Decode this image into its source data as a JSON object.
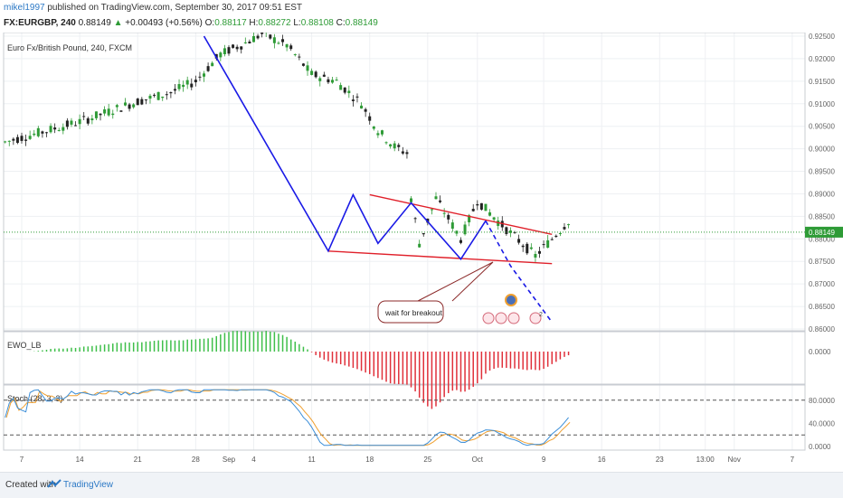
{
  "header": {
    "user": "mikel1997",
    "published": "published on TradingView.com, September 30, 2017 09:51 EST",
    "symbol": "FX:EURGBP, 240",
    "last": "0.88149",
    "change": "+0.00493 (+0.56%)",
    "o_label": "O:",
    "o_value": "0.88117",
    "h_label": "H:",
    "h_value": "0.88272",
    "l_label": "L:",
    "l_value": "0.88108",
    "c_label": "C:",
    "c_value": "0.88149"
  },
  "colors": {
    "up": "#2e9b36",
    "down": "#222222",
    "trendline": "#1a1ae6",
    "channel": "#e0202a",
    "ewo_up": "#3fbf4a",
    "ewo_down": "#e0303a",
    "stoch_k": "#3b8ed8",
    "stoch_d": "#f0a030",
    "last_price_tag": "#2e9b36"
  },
  "chart_data": [
    {
      "type": "candlestick",
      "title": "Euro Fx/British Pound, 240, FXCM",
      "y_ticks": [
        "0.92500",
        "0.92000",
        "0.91500",
        "0.91000",
        "0.90500",
        "0.90000",
        "0.89500",
        "0.89000",
        "0.88500",
        "0.88000",
        "0.87500",
        "0.87000",
        "0.86500",
        "0.86000"
      ],
      "ylim": [
        0.86,
        0.925
      ],
      "last_price_label": "0.88149",
      "x_ticks": [
        "7",
        "14",
        "21",
        "28",
        "Sep",
        "4",
        "11",
        "18",
        "25",
        "Oct",
        "9",
        "16",
        "23",
        "13:00",
        "Nov",
        "7"
      ],
      "annotations": [
        {
          "type": "callout",
          "text": "wait for breakout"
        },
        {
          "type": "event_marker",
          "text": "2"
        }
      ],
      "channel_upper": {
        "start": [
          "Sep 18",
          0.8898
        ],
        "end": [
          "Oct 10",
          0.881
        ]
      },
      "channel_lower": {
        "start": [
          "Sep 13",
          0.8773
        ],
        "end": [
          "Oct 10",
          0.8745
        ]
      },
      "waves": [
        {
          "x": "Aug 29",
          "y": 0.925
        },
        {
          "x": "Sep 13",
          "y": 0.8773
        },
        {
          "x": "Sep 16",
          "y": 0.8898
        },
        {
          "x": "Sep 19",
          "y": 0.879
        },
        {
          "x": "Sep 23",
          "y": 0.888
        },
        {
          "x": "Sep 29",
          "y": 0.8755
        },
        {
          "x": "Oct 2",
          "y": 0.884
        }
      ],
      "projection": [
        {
          "x": "Oct 2",
          "y": 0.884
        },
        {
          "x": "Oct 5",
          "y": 0.874
        },
        {
          "x": "Oct 10",
          "y": 0.8615
        }
      ]
    },
    {
      "type": "bar",
      "title": "EWO_LB",
      "y_ticks": [
        "0.0000"
      ]
    },
    {
      "type": "line",
      "title": "Stoch (28, 3, 3)",
      "y_ticks": [
        "80.0000",
        "40.0000",
        "0.0000"
      ],
      "ylim": [
        0,
        100
      ],
      "levels": [
        80,
        20
      ]
    }
  ]
}
